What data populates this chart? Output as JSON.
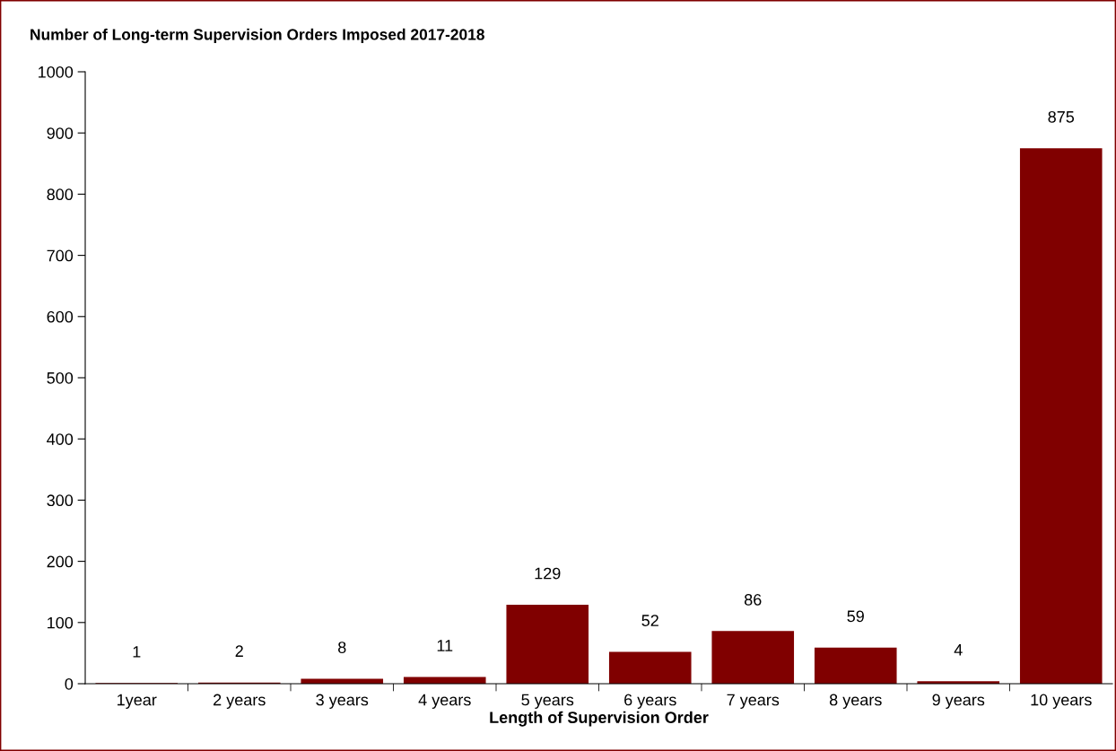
{
  "chart_data": {
    "type": "bar",
    "title": "Number of Long-term Supervision Orders Imposed 2017-2018",
    "xlabel": "Length of Supervision Order",
    "categories": [
      "1year",
      "2 years",
      "3 years",
      "4 years",
      "5 years",
      "6 years",
      "7 years",
      "8 years",
      "9 years",
      "10 years"
    ],
    "values": [
      1,
      2,
      8,
      11,
      129,
      52,
      86,
      59,
      4,
      875
    ],
    "color": "#800000",
    "ylim": [
      0,
      1000
    ],
    "yticks": [
      0,
      100,
      200,
      300,
      400,
      500,
      600,
      700,
      800,
      900,
      1000
    ],
    "data_labels": true,
    "grid": false,
    "legend": false
  }
}
